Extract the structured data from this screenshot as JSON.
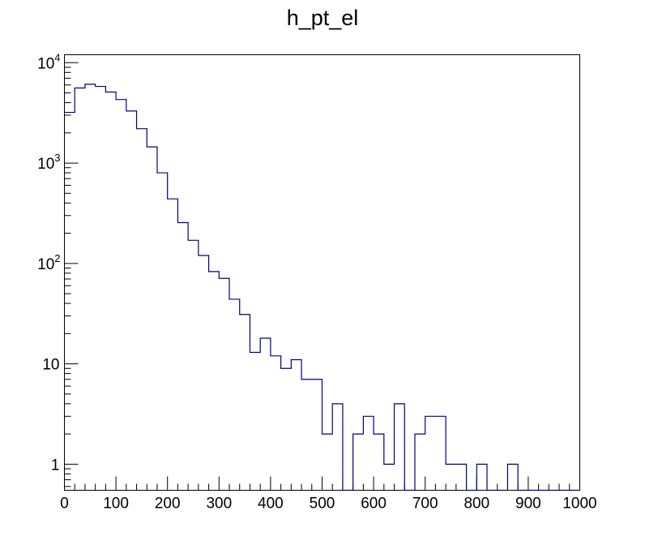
{
  "chart_data": {
    "type": "histogram",
    "title": "h_pt_el",
    "xlabel": "",
    "ylabel": "",
    "xlim": [
      0,
      1000
    ],
    "ylim": [
      0.55,
      12000
    ],
    "yscale": "log",
    "bin_width": 20,
    "x_ticks": [
      "0",
      "100",
      "200",
      "300",
      "400",
      "500",
      "600",
      "700",
      "800",
      "900",
      "1000"
    ],
    "y_ticks": [
      {
        "value": 1,
        "label": "1",
        "exponent": ""
      },
      {
        "value": 10,
        "label": "10",
        "exponent": ""
      },
      {
        "value": 100,
        "label": "10",
        "exponent": "2"
      },
      {
        "value": 1000,
        "label": "10",
        "exponent": "3"
      },
      {
        "value": 10000,
        "label": "10",
        "exponent": "4"
      }
    ],
    "bin_edges": [
      0,
      20,
      40,
      60,
      80,
      100,
      120,
      140,
      160,
      180,
      200,
      220,
      240,
      260,
      280,
      300,
      320,
      340,
      360,
      380,
      400,
      420,
      440,
      460,
      480,
      500,
      520,
      540,
      560,
      580,
      600,
      620,
      640,
      660,
      680,
      700,
      720,
      740,
      760,
      780,
      800,
      820,
      840,
      860,
      880,
      900,
      920,
      940,
      960,
      980,
      1000
    ],
    "values": [
      3200,
      5600,
      6100,
      5800,
      5100,
      4300,
      3300,
      2200,
      1450,
      800,
      440,
      255,
      170,
      120,
      83,
      71,
      44,
      31,
      13,
      18,
      12,
      9,
      11,
      7,
      7,
      2,
      4,
      0,
      2,
      3,
      2,
      1,
      4,
      0,
      2,
      3,
      3,
      1,
      1,
      0,
      1,
      0,
      0,
      1,
      0,
      0,
      0,
      0,
      0,
      0
    ],
    "line_color": "#000080"
  }
}
